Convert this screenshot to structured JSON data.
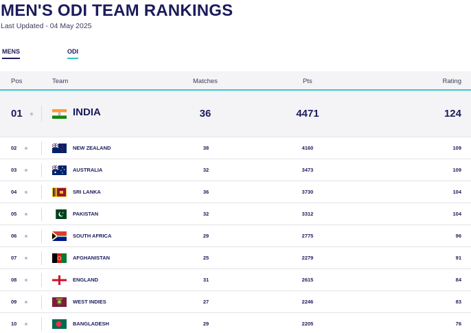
{
  "header": {
    "title": "MEN'S ODI TEAM RANKINGS",
    "last_updated": "Last Updated - 04 May 2025"
  },
  "tabs": [
    {
      "label": "MENS",
      "active": true
    },
    {
      "label": "ODI",
      "active": true
    }
  ],
  "table": {
    "columns": {
      "pos": "Pos",
      "team": "Team",
      "matches": "Matches",
      "pts": "Pts",
      "rating": "Rating"
    },
    "rows": [
      {
        "pos": "01",
        "team": "INDIA",
        "matches": "36",
        "pts": "4471",
        "rating": "124",
        "flag": "india-flag-icon"
      },
      {
        "pos": "02",
        "team": "NEW ZEALAND",
        "matches": "38",
        "pts": "4160",
        "rating": "109",
        "flag": "new-zealand-flag-icon"
      },
      {
        "pos": "03",
        "team": "AUSTRALIA",
        "matches": "32",
        "pts": "3473",
        "rating": "109",
        "flag": "australia-flag-icon"
      },
      {
        "pos": "04",
        "team": "SRI LANKA",
        "matches": "36",
        "pts": "3730",
        "rating": "104",
        "flag": "sri-lanka-flag-icon"
      },
      {
        "pos": "05",
        "team": "PAKISTAN",
        "matches": "32",
        "pts": "3312",
        "rating": "104",
        "flag": "pakistan-flag-icon"
      },
      {
        "pos": "06",
        "team": "SOUTH AFRICA",
        "matches": "29",
        "pts": "2775",
        "rating": "96",
        "flag": "south-africa-flag-icon"
      },
      {
        "pos": "07",
        "team": "AFGHANISTAN",
        "matches": "25",
        "pts": "2279",
        "rating": "91",
        "flag": "afghanistan-flag-icon"
      },
      {
        "pos": "08",
        "team": "ENGLAND",
        "matches": "31",
        "pts": "2615",
        "rating": "84",
        "flag": "england-flag-icon"
      },
      {
        "pos": "09",
        "team": "WEST INDIES",
        "matches": "27",
        "pts": "2246",
        "rating": "83",
        "flag": "west-indies-flag-icon"
      },
      {
        "pos": "10",
        "team": "BANGLADESH",
        "matches": "29",
        "pts": "2205",
        "rating": "76",
        "flag": "bangladesh-flag-icon"
      }
    ]
  },
  "colors": {
    "navy": "#1b1b5c",
    "accent_teal": "#34c8d0",
    "header_bg": "#f4f4f6"
  }
}
